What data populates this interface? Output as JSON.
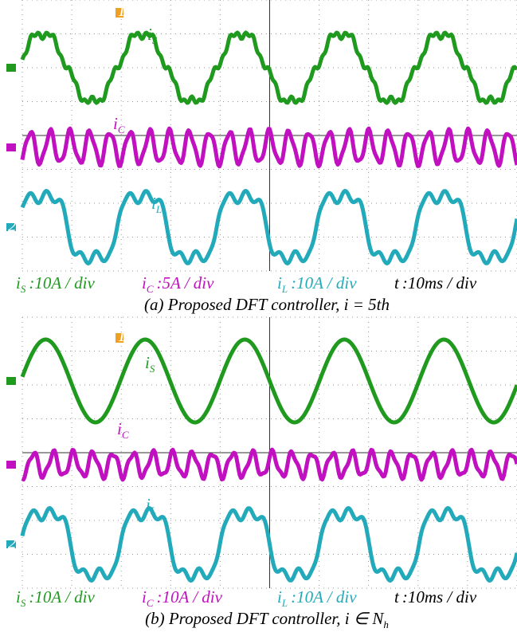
{
  "panels": [
    {
      "traces": [
        {
          "symbol": "i",
          "subscript": "S",
          "color": "#1f9a1f"
        },
        {
          "symbol": "i",
          "subscript": "C",
          "color": "#c010c0"
        },
        {
          "symbol": "i",
          "subscript": "L",
          "color": "#22aabb"
        }
      ],
      "channel_label": "2",
      "trigger_label": "T",
      "scales": [
        {
          "symbol": "i",
          "subscript": "S",
          "text": ":10A / div",
          "color": "#1f9a1f"
        },
        {
          "symbol": "i",
          "subscript": "C",
          "text": ":5A / div",
          "color": "#c010c0"
        },
        {
          "symbol": "i",
          "subscript": "L",
          "text": ":10A / div",
          "color": "#22aabb"
        },
        {
          "symbol": "t",
          "subscript": null,
          "text": ":10ms / div",
          "color": "#000000"
        }
      ],
      "caption": "(a) Proposed DFT controller, i = 5th",
      "caption_subscript": null
    },
    {
      "traces": [
        {
          "symbol": "i",
          "subscript": "S",
          "color": "#1f9a1f"
        },
        {
          "symbol": "i",
          "subscript": "C",
          "color": "#c010c0"
        },
        {
          "symbol": "i",
          "subscript": "L",
          "color": "#22aabb"
        }
      ],
      "channel_label": "2",
      "trigger_label": "T",
      "scales": [
        {
          "symbol": "i",
          "subscript": "S",
          "text": ":10A / div",
          "color": "#1f9a1f"
        },
        {
          "symbol": "i",
          "subscript": "C",
          "text": ":10A / div",
          "color": "#c010c0"
        },
        {
          "symbol": "i",
          "subscript": "L",
          "text": ":10A / div",
          "color": "#22aabb"
        },
        {
          "symbol": "t",
          "subscript": null,
          "text": ":10ms / div",
          "color": "#000000"
        }
      ],
      "caption": "(b) Proposed DFT controller, i ∈ N",
      "caption_subscript": "h"
    }
  ]
}
